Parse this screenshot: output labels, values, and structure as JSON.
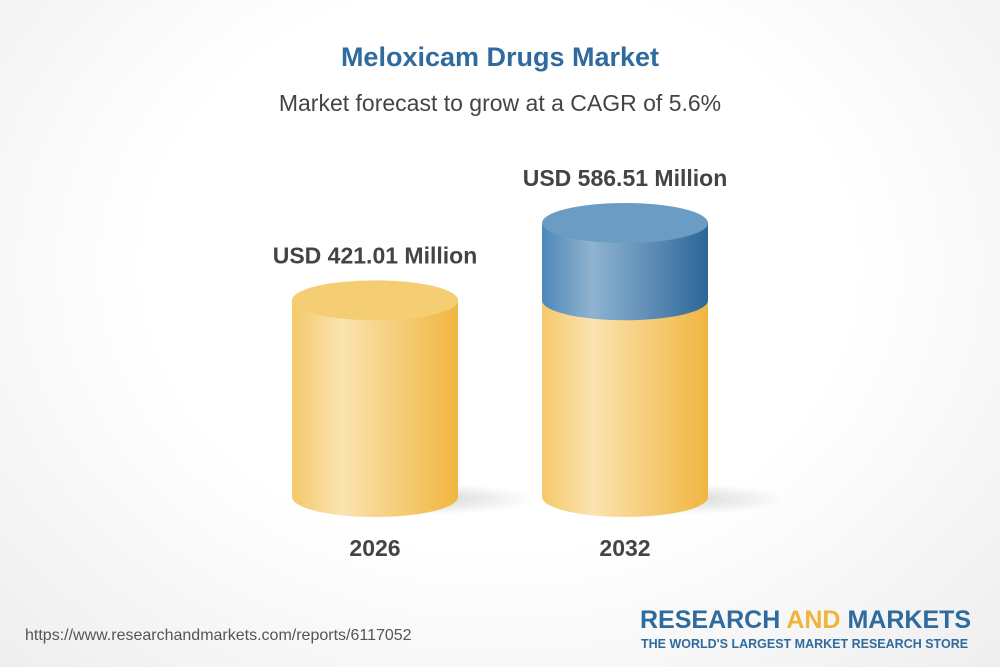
{
  "title": "Meloxicam Drugs Market",
  "subtitle": "Market forecast to grow at a CAGR of 5.6%",
  "chart_data": {
    "type": "bar",
    "categories": [
      "2026",
      "2032"
    ],
    "values": [
      421.01,
      586.51
    ],
    "data_labels": [
      "USD 421.01 Million",
      "USD 586.51 Million"
    ],
    "unit": "USD Million",
    "colors": {
      "base": "#f3c155",
      "growth": "#3f7fb0"
    }
  },
  "footer": {
    "url": "https://www.researchandmarkets.com/reports/6117052",
    "logo_research": "RESEARCH",
    "logo_and": "AND",
    "logo_markets": "MARKETS",
    "tagline": "THE WORLD'S LARGEST MARKET RESEARCH STORE"
  }
}
